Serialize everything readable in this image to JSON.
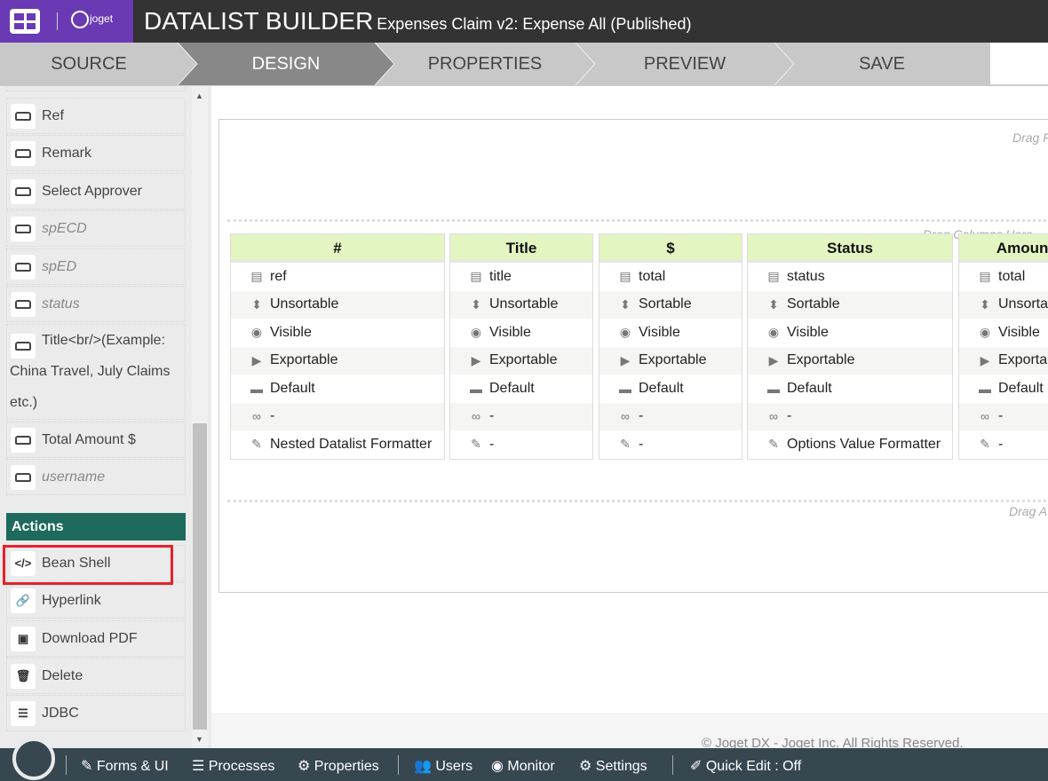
{
  "header": {
    "brand": "joget",
    "title": "DATALIST BUILDER",
    "subtitle": "Expenses Claim v2: Expense All (Published)",
    "brand_color": "#6a3ab5"
  },
  "tabs": [
    {
      "label": "SOURCE"
    },
    {
      "label": "DESIGN",
      "active": true
    },
    {
      "label": "PROPERTIES"
    },
    {
      "label": "PREVIEW"
    },
    {
      "label": "SAVE"
    }
  ],
  "sidebar": {
    "columns": [
      {
        "label": "Ref",
        "icon": "hdd-icon"
      },
      {
        "label": "Remark",
        "icon": "hdd-icon"
      },
      {
        "label": "Select Approver",
        "icon": "hdd-icon"
      },
      {
        "label": "spECD",
        "icon": "hdd-icon",
        "italic": true
      },
      {
        "label": "spED",
        "icon": "hdd-icon",
        "italic": true
      },
      {
        "label": "status",
        "icon": "hdd-icon",
        "italic": true
      },
      {
        "label": "Title<br/>(Example: China Travel, July Claims etc.)",
        "icon": "hdd-icon"
      },
      {
        "label": "Total Amount $",
        "icon": "hdd-icon"
      },
      {
        "label": "username",
        "icon": "hdd-icon",
        "italic": true
      }
    ],
    "actions_heading": "Actions",
    "actions": [
      {
        "label": "Bean Shell",
        "icon": "code-icon",
        "highlighted": true
      },
      {
        "label": "Hyperlink",
        "icon": "link-icon"
      },
      {
        "label": "Download PDF",
        "icon": "pdf-download-icon"
      },
      {
        "label": "Delete",
        "icon": "trash-icon"
      },
      {
        "label": "JDBC",
        "icon": "database-icon"
      }
    ]
  },
  "canvas": {
    "drag_filters": "Drag F",
    "drag_columns": "Drag Columns Here",
    "drag_actions": "Drag A",
    "columns": [
      {
        "header": "#",
        "rows": [
          "ref",
          "Unsortable",
          "Visible",
          "Exportable",
          "Default",
          "-",
          "Nested Datalist Formatter"
        ]
      },
      {
        "header": "Title",
        "rows": [
          "title",
          "Unsortable",
          "Visible",
          "Exportable",
          "Default",
          "-",
          "-"
        ]
      },
      {
        "header": "$",
        "rows": [
          "total",
          "Sortable",
          "Visible",
          "Exportable",
          "Default",
          "-",
          "-"
        ]
      },
      {
        "header": "Status",
        "rows": [
          "status",
          "Sortable",
          "Visible",
          "Exportable",
          "Default",
          "-",
          "Options Value Formatter"
        ]
      },
      {
        "header": "Amount",
        "rows": [
          "total",
          "Unsortable",
          "Visible",
          "Exportable",
          "Default",
          "-",
          "-"
        ]
      }
    ],
    "row_icons": [
      "database-icon",
      "sort-icon",
      "eye-icon",
      "export-icon",
      "ruler-icon",
      "link-icon",
      "brush-icon"
    ]
  },
  "footer": {
    "copyright": "© Joget DX - Joget Inc. All Rights Reserved."
  },
  "bottom_bar": {
    "items": [
      "Forms & UI",
      "Processes",
      "Properties",
      "Users",
      "Monitor",
      "Settings",
      "Quick Edit : Off"
    ]
  }
}
